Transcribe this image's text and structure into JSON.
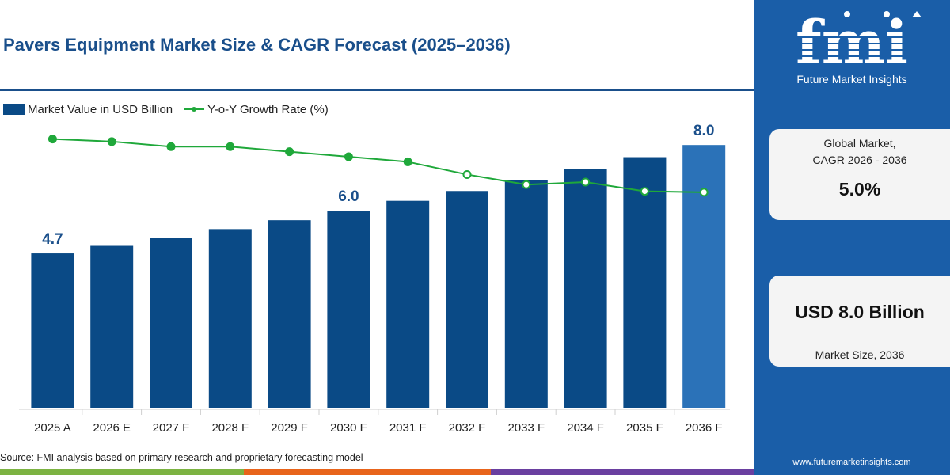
{
  "title": "Pavers Equipment Market Size & CAGR Forecast (2025–2036)",
  "legend": {
    "bar_label": "Market Value in USD Billion",
    "line_label": "Y-o-Y Growth Rate (%)"
  },
  "source": "Source: FMI analysis based on primary research and proprietary forecasting model",
  "colors": {
    "title": "#1a4f8b",
    "bar": "#0a4a86",
    "bar_last": "#2b72b8",
    "line": "#1fa83a",
    "panel": "#1a5ea8",
    "strip": [
      "#7cb342",
      "#e8641b",
      "#6a3fa0",
      "#2e6fb6"
    ]
  },
  "sidebar": {
    "brand": "fmi",
    "brand_sub": "Future Market Insights",
    "cagr_label_1": "Global Market,",
    "cagr_label_2": "CAGR 2026 - 2036",
    "cagr_value": "5.0%",
    "size_value": "USD 8.0 Billion",
    "size_label": "Market Size, 2036",
    "website": "www.futuremarketinsights.com"
  },
  "chart_data": {
    "type": "bar",
    "categories": [
      "2025 A",
      "2026 E",
      "2027 F",
      "2028 F",
      "2029 F",
      "2030 F",
      "2031 F",
      "2032 F",
      "2033 F",
      "2034 F",
      "2035 F",
      "2036 F"
    ],
    "series": [
      {
        "name": "Market Value in USD Billion",
        "type": "bar",
        "values": [
          4.7,
          4.93,
          5.18,
          5.44,
          5.71,
          6.0,
          6.3,
          6.6,
          6.93,
          7.27,
          7.63,
          8.0
        ]
      },
      {
        "name": "Y-o-Y Growth Rate (%)",
        "type": "line",
        "values": [
          5.3,
          5.25,
          5.15,
          5.15,
          5.05,
          4.95,
          4.85,
          4.6,
          4.4,
          4.45,
          4.27,
          4.25
        ]
      }
    ],
    "data_labels": [
      {
        "category": "2025 A",
        "text": "4.7"
      },
      {
        "category": "2030 F",
        "text": "6.0"
      },
      {
        "category": "2036 F",
        "text": "8.0"
      }
    ],
    "bar_ylim": [
      0,
      8.8
    ],
    "line_ylim": [
      0,
      5.7
    ],
    "legend_position": "top-left",
    "grid": false
  }
}
